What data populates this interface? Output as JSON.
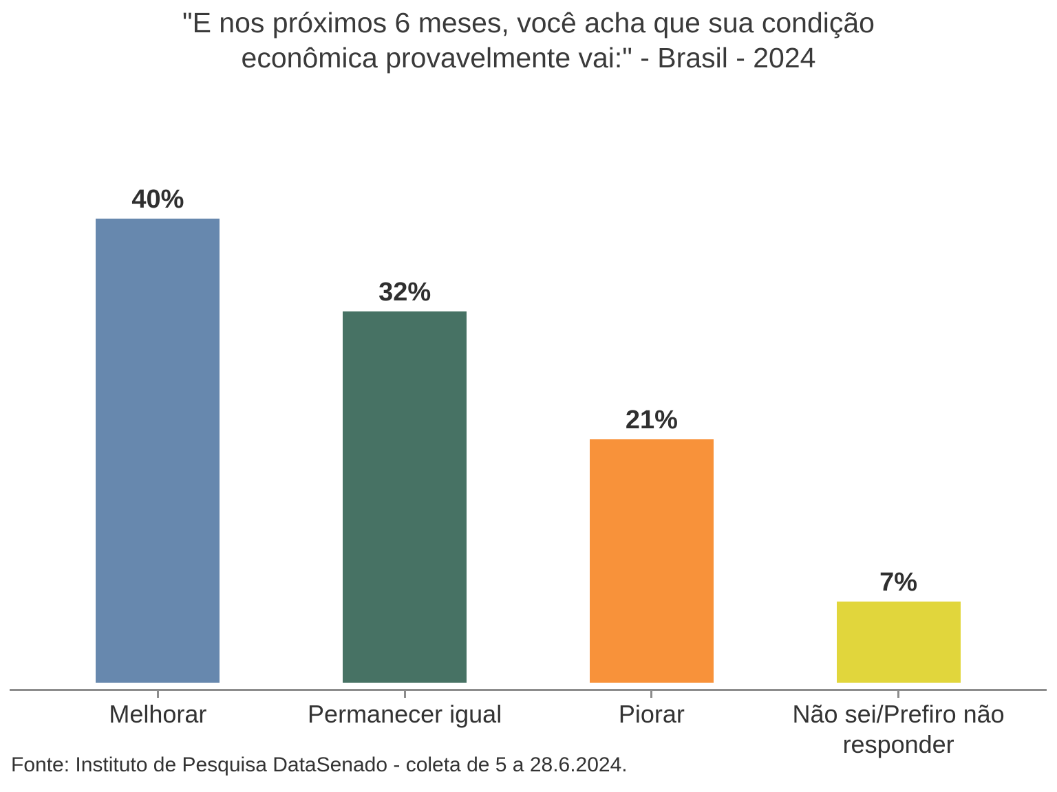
{
  "display": {
    "title_lines": [
      "\"E nos próximos 6 meses, você acha que sua condição",
      "econômica provavelmente vai:\" - Brasil - 2024"
    ]
  },
  "source_note": "Fonte: Instituto de Pesquisa DataSenado - coleta de 5 a 28.6.2024.",
  "chart_data": {
    "type": "bar",
    "title": "\"E nos próximos 6 meses, você acha que sua condição econômica provavelmente vai:\" - Brasil - 2024",
    "categories": [
      "Melhorar",
      "Permanecer igual",
      "Piorar",
      "Não sei/Prefiro não responder"
    ],
    "values": [
      40,
      32,
      21,
      7
    ],
    "value_labels": [
      "40%",
      "32%",
      "21%",
      "7%"
    ],
    "bar_colors": [
      "#6788AE",
      "#477264",
      "#F8923A",
      "#E1D63C"
    ],
    "xlabel": "",
    "ylabel": "",
    "ylim": [
      0,
      44
    ],
    "grid": false,
    "legend": false,
    "value_label_position": "above-bars",
    "axis_line_color": "#8C8C8C",
    "text_color": "#333333",
    "source": "Fonte: Instituto de Pesquisa DataSenado - coleta de 5 a 28.6.2024."
  }
}
